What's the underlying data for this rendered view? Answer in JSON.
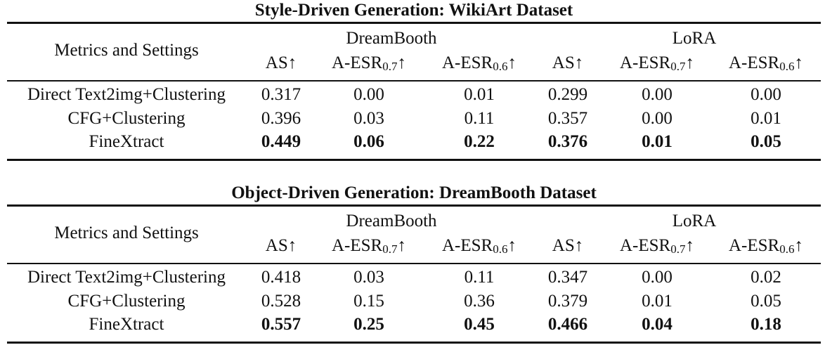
{
  "tables": [
    {
      "caption": "Style-Driven Generation: WikiArt Dataset",
      "row_header_label": "Metrics and Settings",
      "groups": [
        "DreamBooth",
        "LoRA"
      ],
      "columns": [
        {
          "base": "AS",
          "sub": "",
          "arrow": "↑"
        },
        {
          "base": "A-ESR",
          "sub": "0.7",
          "arrow": "↑"
        },
        {
          "base": "A-ESR",
          "sub": "0.6",
          "arrow": "↑"
        },
        {
          "base": "AS",
          "sub": "",
          "arrow": "↑"
        },
        {
          "base": "A-ESR",
          "sub": "0.7",
          "arrow": "↑"
        },
        {
          "base": "A-ESR",
          "sub": "0.6",
          "arrow": "↑"
        }
      ],
      "rows": [
        {
          "label": "Direct Text2img+Clustering",
          "bold": false,
          "values": [
            "0.317",
            "0.00",
            "0.01",
            "0.299",
            "0.00",
            "0.00"
          ]
        },
        {
          "label": "CFG+Clustering",
          "bold": false,
          "values": [
            "0.396",
            "0.03",
            "0.11",
            "0.357",
            "0.00",
            "0.01"
          ]
        },
        {
          "label": "FineXtract",
          "bold": true,
          "values": [
            "0.449",
            "0.06",
            "0.22",
            "0.376",
            "0.01",
            "0.05"
          ]
        }
      ]
    },
    {
      "caption": "Object-Driven Generation: DreamBooth Dataset",
      "row_header_label": "Metrics and Settings",
      "groups": [
        "DreamBooth",
        "LoRA"
      ],
      "columns": [
        {
          "base": "AS",
          "sub": "",
          "arrow": "↑"
        },
        {
          "base": "A-ESR",
          "sub": "0.7",
          "arrow": "↑"
        },
        {
          "base": "A-ESR",
          "sub": "0.6",
          "arrow": "↑"
        },
        {
          "base": "AS",
          "sub": "",
          "arrow": "↑"
        },
        {
          "base": "A-ESR",
          "sub": "0.7",
          "arrow": "↑"
        },
        {
          "base": "A-ESR",
          "sub": "0.6",
          "arrow": "↑"
        }
      ],
      "rows": [
        {
          "label": "Direct Text2img+Clustering",
          "bold": false,
          "values": [
            "0.418",
            "0.03",
            "0.11",
            "0.347",
            "0.00",
            "0.02"
          ]
        },
        {
          "label": "CFG+Clustering",
          "bold": false,
          "values": [
            "0.528",
            "0.15",
            "0.36",
            "0.379",
            "0.01",
            "0.05"
          ]
        },
        {
          "label": "FineXtract",
          "bold": true,
          "values": [
            "0.557",
            "0.25",
            "0.45",
            "0.466",
            "0.04",
            "0.18"
          ]
        }
      ]
    }
  ]
}
